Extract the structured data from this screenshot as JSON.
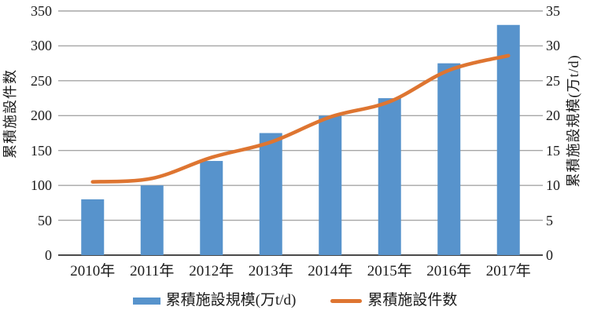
{
  "chart_data": {
    "type": "combo-bar-line",
    "title": "",
    "categories": [
      "2010年",
      "2011年",
      "2012年",
      "2013年",
      "2014年",
      "2015年",
      "2016年",
      "2017年"
    ],
    "series": [
      {
        "name": "累積施設規模(万t/d)",
        "type": "bar",
        "axis": "right",
        "values": [
          8,
          10,
          13.5,
          17.5,
          20,
          22.5,
          27.5,
          33
        ]
      },
      {
        "name": "累積施設件数",
        "type": "line",
        "axis": "left",
        "smooth": true,
        "values": [
          105,
          110,
          140,
          162,
          198,
          220,
          265,
          286
        ]
      }
    ],
    "left_axis": {
      "title": "累積施設件数",
      "min": 0,
      "max": 350,
      "step": 50,
      "ticks": [
        "0",
        "50",
        "100",
        "150",
        "200",
        "250",
        "300",
        "350"
      ]
    },
    "right_axis": {
      "title": "累積施設規模(万t/d)",
      "min": 0,
      "max": 35,
      "step": 5,
      "ticks": [
        "0",
        "5",
        "10",
        "15",
        "20",
        "25",
        "30",
        "35"
      ]
    },
    "grid": true,
    "legend_position": "bottom"
  },
  "legend": {
    "items": [
      {
        "label": "累積施設規模(万t/d)",
        "swatch": "bar"
      },
      {
        "label": "累積施設件数",
        "swatch": "line"
      }
    ]
  },
  "colors": {
    "bar": "#5793cc",
    "line": "#de7531",
    "grid": "#a6a6a6",
    "axis_line": "#4a4a4a",
    "text": "#1a1a1a"
  }
}
